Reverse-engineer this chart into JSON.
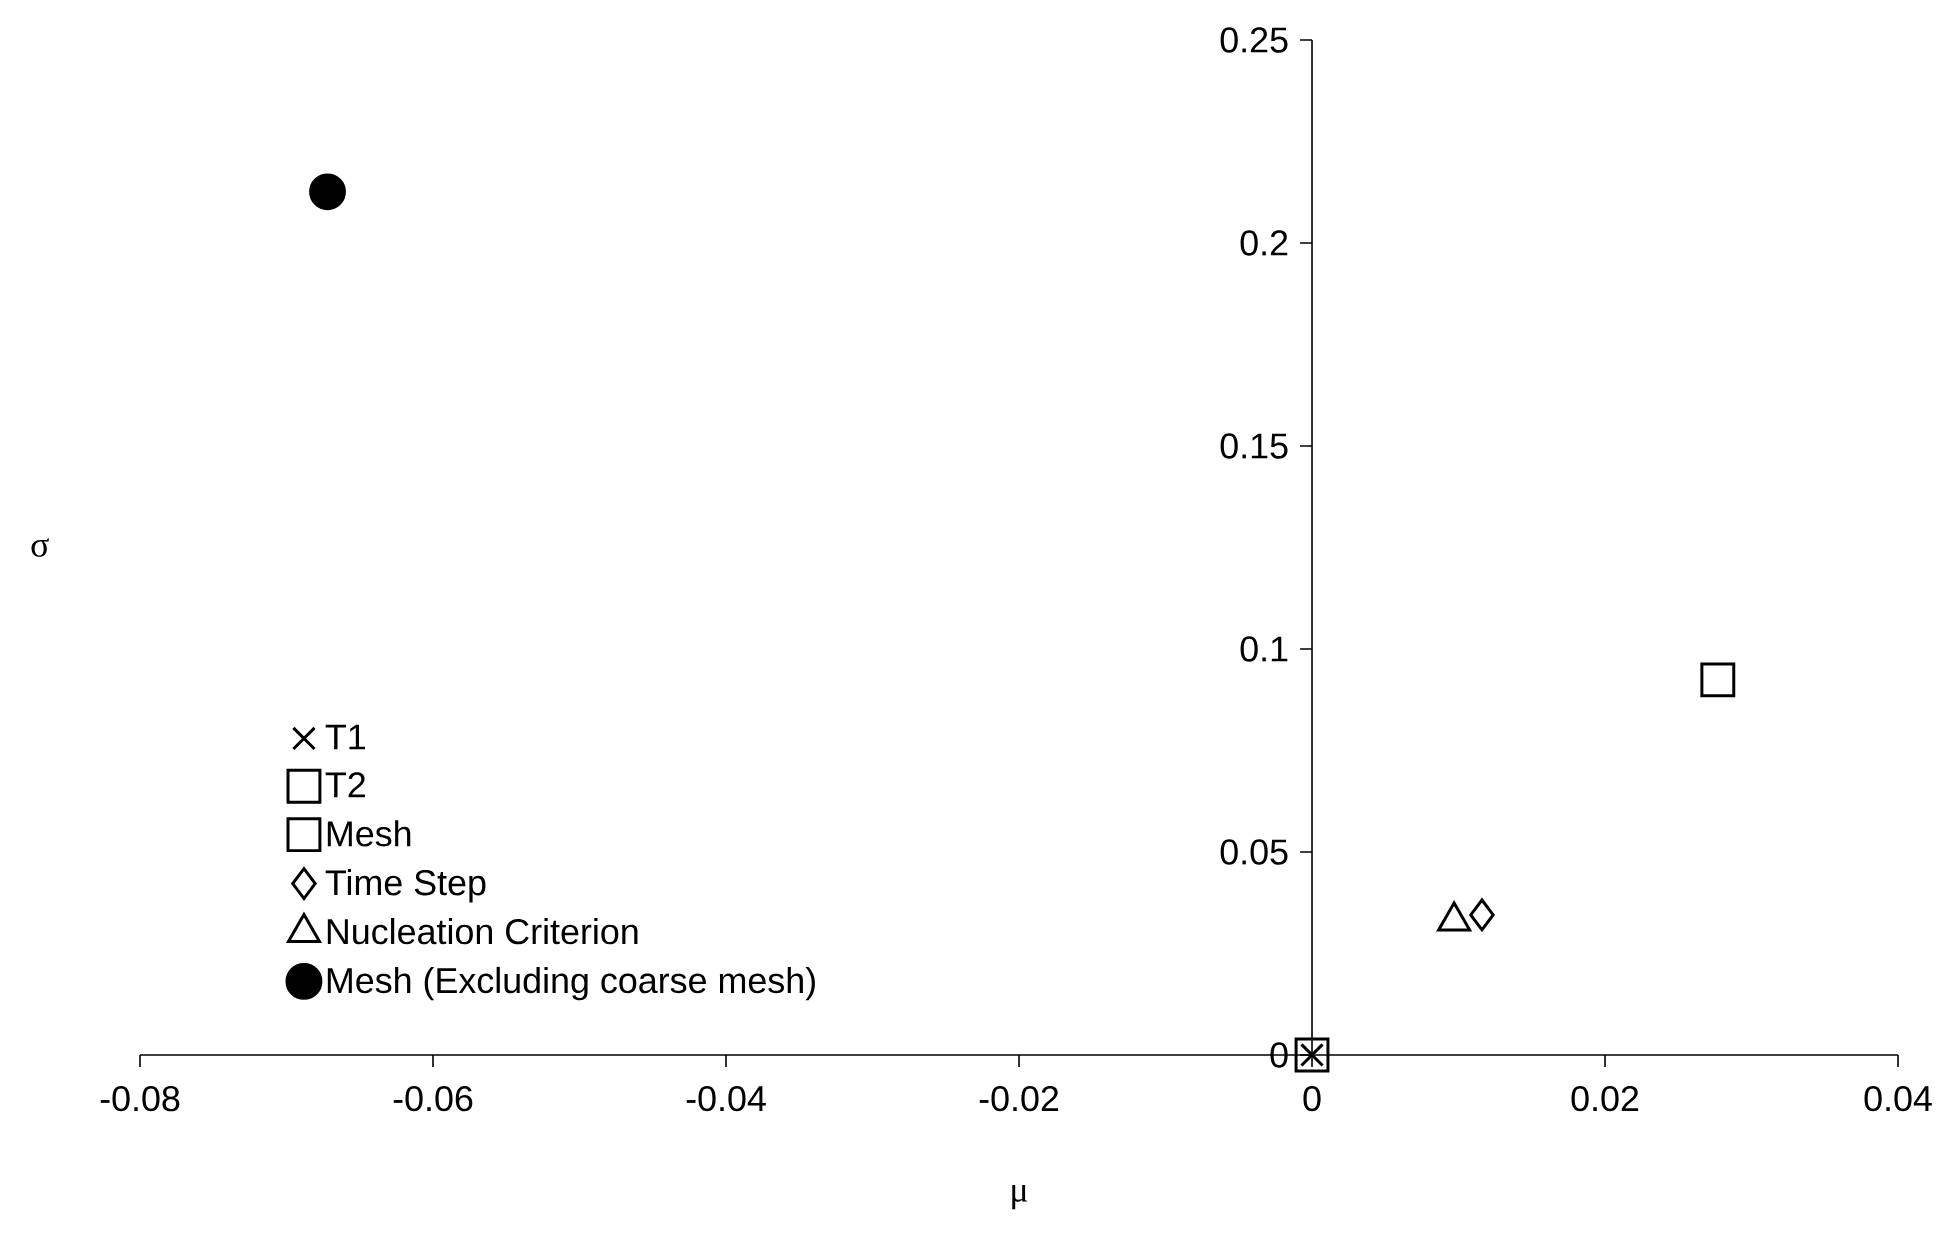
{
  "chart_data": {
    "type": "scatter",
    "xlabel": "μ",
    "ylabel": "σ",
    "xlim": [
      -0.08,
      0.04
    ],
    "xticks": [
      -0.08,
      -0.06,
      -0.04,
      -0.02,
      0,
      0.02,
      0.04
    ],
    "ylim": [
      0,
      0.25
    ],
    "yticks": [
      0,
      0.05,
      0.1,
      0.15,
      0.2,
      0.25
    ],
    "grid": false,
    "legend": "bottom left",
    "series": [
      {
        "name": "T1",
        "color": "#000000",
        "marker": "cross",
        "x": [
          0
        ],
        "values": [
          0
        ]
      },
      {
        "name": "T2",
        "color": "#000000",
        "marker": "square",
        "x": [
          0
        ],
        "values": [
          0
        ]
      },
      {
        "name": "Mesh",
        "color": "#000000",
        "marker": "square",
        "x": [
          0.0277
        ],
        "values": [
          0.0924
        ]
      },
      {
        "name": "Time Step",
        "color": "#000000",
        "marker": "diamond",
        "x": [
          0.0116
        ],
        "values": [
          0.0345
        ]
      },
      {
        "name": "Nucleation Criterion",
        "color": "#000000",
        "marker": "triangle",
        "x": [
          0.0097
        ],
        "values": [
          0.033
        ]
      },
      {
        "name": "Mesh (Excluding coarse mesh)",
        "color": "#000000",
        "marker": "circle",
        "x": [
          -0.0672
        ],
        "values": [
          0.2126
        ]
      }
    ]
  }
}
